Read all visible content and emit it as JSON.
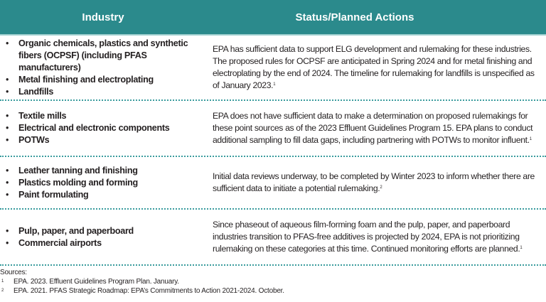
{
  "header": {
    "industry_label": "Industry",
    "status_label": "Status/Planned Actions",
    "background_color": "#2b8a8c"
  },
  "rows": [
    {
      "industries": [
        "Organic chemicals, plastics and synthetic fibers (OCPSF) (including PFAS manufacturers)",
        "Metal finishing and electroplating",
        "Landfills"
      ],
      "status": "EPA has sufficient data to support ELG development and rulemaking for these industries. The proposed rules for OCPSF are anticipated in Spring 2024 and for metal finishing and electroplating by the end of 2024. The timeline for rulemaking for landfills is unspecified as of January 2023.",
      "footnote": "1"
    },
    {
      "industries": [
        "Textile mills",
        "Electrical and electronic components",
        "POTWs"
      ],
      "status": "EPA does not have sufficient data to make a determination on proposed rulemakings for these point sources as of the 2023 Effluent Guidelines Program 15. EPA plans to conduct additional sampling to fill data gaps, including partnering with POTWs to monitor influent.",
      "footnote": "1"
    },
    {
      "industries": [
        "Leather tanning and finishing",
        "Plastics molding and forming",
        "Paint formulating"
      ],
      "status": "Initial data reviews underway, to be completed by Winter 2023 to inform whether there are sufficient data to initiate a potential rulemaking.",
      "footnote": "2"
    },
    {
      "industries": [
        "Pulp, paper, and paperboard",
        "Commercial airports"
      ],
      "status": "Since phaseout of aqueous film-forming foam and the pulp, paper, and paperboard industries transition to PFAS-free additives is projected by 2024, EPA is not prioritizing rulemaking on these categories at this time. Continued monitoring efforts are planned.",
      "footnote": "1"
    }
  ],
  "bullet_char": "•",
  "sources": {
    "title": "Sources:",
    "items": [
      {
        "num": "1",
        "text": "EPA. 2023. Effluent Guidelines Program Plan. January."
      },
      {
        "num": "2",
        "text": "EPA. 2021. PFAS Strategic Roadmap: EPA’s Commitments to Action 2021-2024. October."
      }
    ]
  }
}
